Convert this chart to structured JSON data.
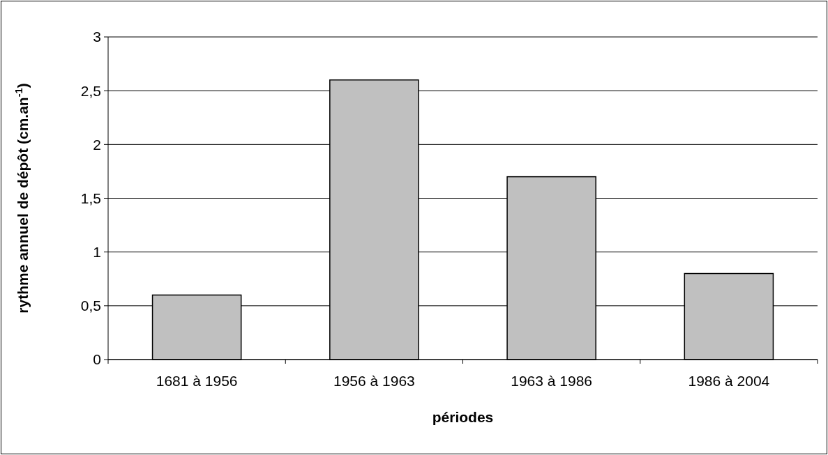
{
  "chart_data": {
    "type": "bar",
    "xlabel": "périodes",
    "ylabel": "rythme annuel de dépôt (cm.an$^{-1}$)",
    "categories": [
      "1681 à 1956",
      "1956 à 1963",
      "1963 à 1986",
      "1986 à 2004"
    ],
    "values": [
      0.6,
      2.6,
      1.7,
      0.8
    ],
    "color": "#c0c0c0",
    "ylim": [
      0,
      3
    ],
    "yticks": [
      0,
      {
        "value": 0.5,
        "label": "0,5"
      },
      1,
      {
        "value": 1.5,
        "label": "1,5"
      },
      2,
      {
        "value": 2.5,
        "label": "2,5"
      },
      3
    ],
    "grid": "y"
  }
}
